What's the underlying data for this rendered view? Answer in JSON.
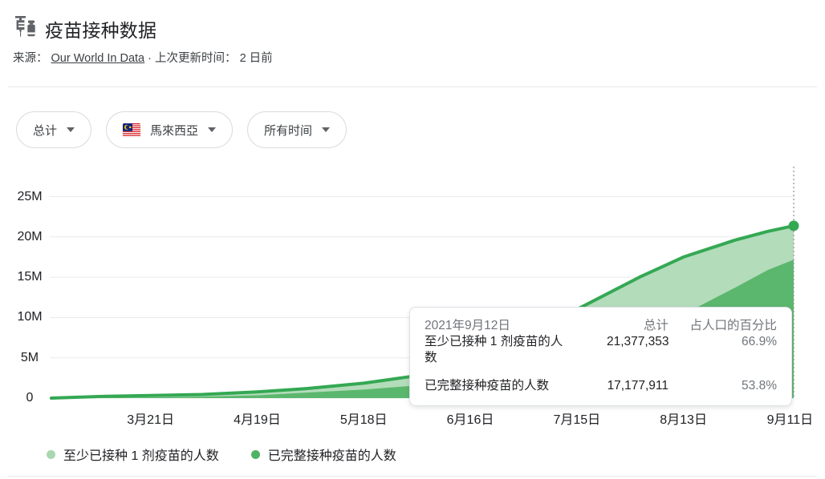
{
  "header": {
    "title": "疫苗接种数据",
    "source_label": "来源：",
    "source_link": "Our World In Data",
    "dot_separator": "·",
    "updated_label": "上次更新时间：",
    "updated_value": "2 日前"
  },
  "filters": {
    "metric": {
      "label": "总计"
    },
    "country": {
      "label": "馬來西亞",
      "flag": "malaysia-flag"
    },
    "time_range": {
      "label": "所有时间"
    }
  },
  "chart_data": {
    "type": "area",
    "unit": "people, millions",
    "domain_days": [
      0,
      202
    ],
    "y_ticks": [
      {
        "label": "0",
        "value": 0
      },
      {
        "label": "5M",
        "value": 5
      },
      {
        "label": "10M",
        "value": 10
      },
      {
        "label": "15M",
        "value": 15
      },
      {
        "label": "20M",
        "value": 20
      },
      {
        "label": "25M",
        "value": 25
      }
    ],
    "x_ticks": [
      {
        "label": "3月21日",
        "day": 27
      },
      {
        "label": "4月19日",
        "day": 56
      },
      {
        "label": "5月18日",
        "day": 85
      },
      {
        "label": "6月16日",
        "day": 114
      },
      {
        "label": "7月15日",
        "day": 143
      },
      {
        "label": "8月13日",
        "day": 172
      },
      {
        "label": "9月11日",
        "day": 201
      }
    ],
    "series": [
      {
        "name": "至少已接种 1 剂疫苗的人数",
        "days": [
          0,
          13,
          27,
          41,
          56,
          70,
          85,
          99,
          114,
          129,
          143,
          160,
          172,
          186,
          195,
          202
        ],
        "values_millions": [
          0,
          0.2,
          0.33,
          0.45,
          0.78,
          1.2,
          1.85,
          2.75,
          4.6,
          7.0,
          11.0,
          15.0,
          17.5,
          19.6,
          20.7,
          21.38
        ]
      },
      {
        "name": "已完整接种疫苗的人数",
        "days": [
          0,
          13,
          27,
          41,
          56,
          70,
          85,
          99,
          114,
          129,
          143,
          160,
          172,
          186,
          195,
          202
        ],
        "values_millions": [
          0,
          0.02,
          0.09,
          0.18,
          0.35,
          0.7,
          1.05,
          1.55,
          2.2,
          3.3,
          4.9,
          7.8,
          10.4,
          13.7,
          15.9,
          17.18
        ]
      }
    ],
    "end_marker": {
      "day": 202,
      "value_millions": 21.38
    },
    "colors": {
      "line": "#34a853",
      "fill_light": "#b3dcba",
      "fill_dark": "#5bb76d",
      "grid": "#e9eaec",
      "guide": "#9aa0a6"
    }
  },
  "tooltip": {
    "date": "2021年9月12日",
    "col_total": "总计",
    "col_percent": "占人口的百分比",
    "rows": [
      {
        "label": "至少已接种 1 剂疫苗的人数",
        "total": "21,377,353",
        "percent": "66.9%"
      },
      {
        "label": "已完整接种疫苗的人数",
        "total": "17,177,911",
        "percent": "53.8%"
      }
    ]
  },
  "legend": {
    "items": [
      {
        "label": "至少已接种 1 剂疫苗的人数",
        "color": "#a8d8b0"
      },
      {
        "label": "已完整接种疫苗的人数",
        "color": "#50b264"
      }
    ]
  }
}
